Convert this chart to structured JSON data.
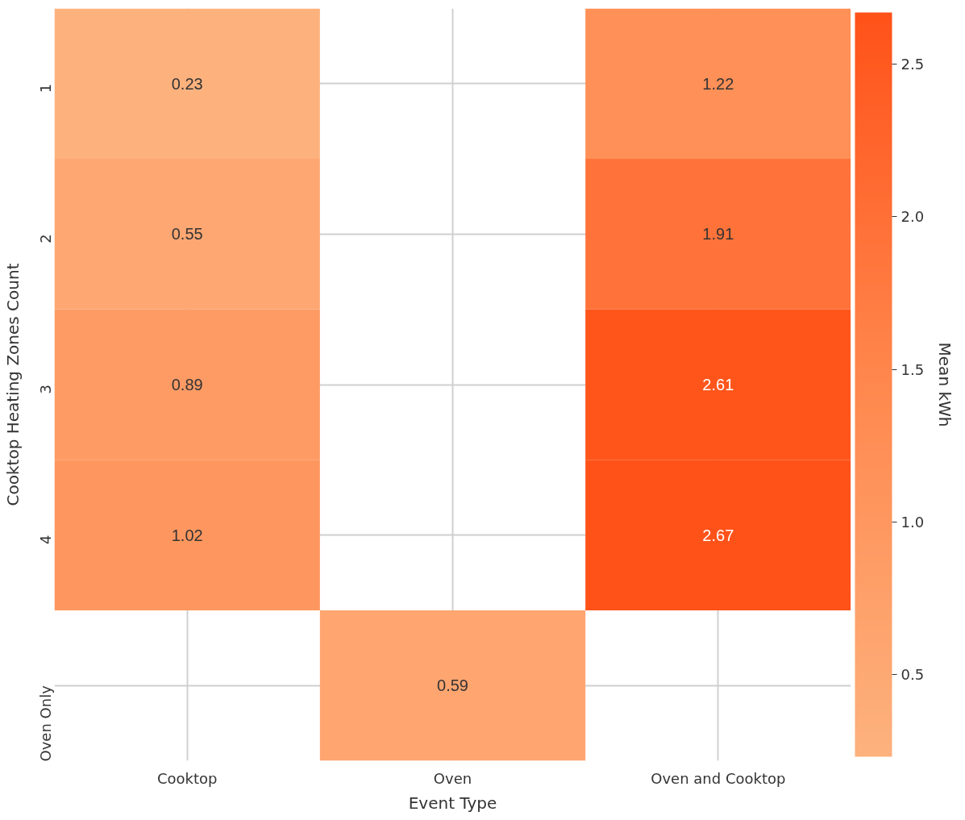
{
  "chart_data": {
    "type": "heatmap",
    "xlabel": "Event Type",
    "ylabel": "Cooktop Heating Zones Count",
    "clabel": "Mean kWh",
    "categories": [
      "Cooktop",
      "Oven",
      "Oven and Cooktop"
    ],
    "y_categories": [
      "1",
      "2",
      "3",
      "4",
      "Oven Only"
    ],
    "cells": [
      [
        0.23,
        null,
        1.22
      ],
      [
        0.55,
        null,
        1.91
      ],
      [
        0.89,
        null,
        2.61
      ],
      [
        1.02,
        null,
        2.67
      ],
      [
        null,
        0.59,
        null
      ]
    ],
    "clim": [
      0.23,
      2.67
    ],
    "cticks": [
      0.5,
      {
        "value": 1.0,
        "label": "1.0"
      },
      1.5,
      {
        "value": 2.0,
        "label": "2.0"
      },
      2.5
    ],
    "data_labels": true,
    "grid": true
  }
}
